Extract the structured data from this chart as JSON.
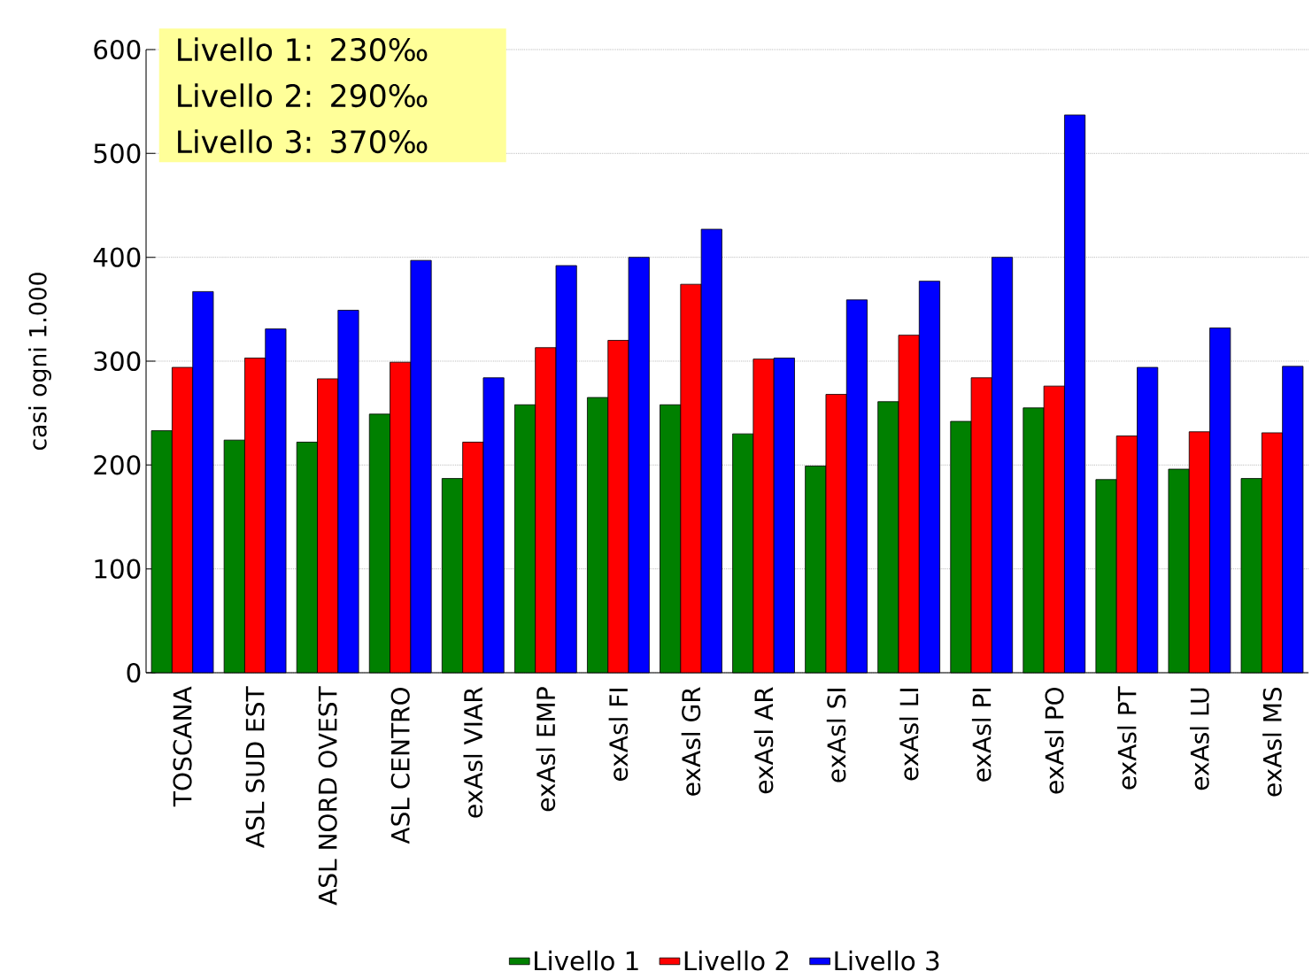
{
  "chart_data": {
    "type": "bar",
    "ylabel": "casi ogni 1.000",
    "categories": [
      "TOSCANA",
      "ASL SUD EST",
      "ASL NORD OVEST",
      "ASL CENTRO",
      "exAsl VIAR",
      "exAsl EMP",
      "exAsl FI",
      "exAsl GR",
      "exAsl AR",
      "exAsl SI",
      "exAsl LI",
      "exAsl PI",
      "exAsl PO",
      "exAsl PT",
      "exAsl LU",
      "exAsl MS"
    ],
    "series": [
      {
        "name": "Livello 1",
        "color": "#008000",
        "values": [
          233,
          224,
          222,
          249,
          187,
          258,
          265,
          258,
          230,
          199,
          261,
          242,
          255,
          186,
          196,
          187
        ]
      },
      {
        "name": "Livello 2",
        "color": "#ff0000",
        "values": [
          294,
          303,
          283,
          299,
          222,
          313,
          320,
          374,
          302,
          268,
          325,
          284,
          276,
          228,
          232,
          231
        ]
      },
      {
        "name": "Livello 3",
        "color": "#0000ff",
        "values": [
          367,
          331,
          349,
          397,
          284,
          392,
          400,
          427,
          303,
          359,
          377,
          400,
          537,
          294,
          332,
          295
        ]
      }
    ],
    "ylim": [
      0,
      600
    ],
    "yticks": [
      0,
      100,
      200,
      300,
      400,
      500,
      600
    ],
    "grid": "y",
    "legend": "bottom",
    "annotations": [
      "Livello 1: 230‰",
      "Livello 2: 290‰",
      "Livello 3: 370‰"
    ]
  }
}
